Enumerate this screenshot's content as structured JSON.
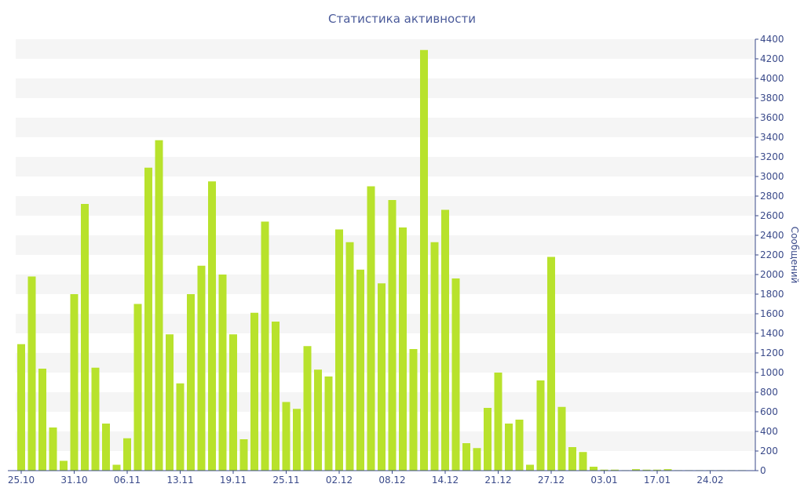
{
  "chart_data": {
    "type": "bar",
    "title": "Статистика активности",
    "xlabel": "",
    "ylabel": "Сообщений",
    "ylim": [
      0,
      4400
    ],
    "y_ticks": [
      0,
      200,
      400,
      600,
      800,
      1000,
      1200,
      1400,
      1600,
      1800,
      2000,
      2200,
      2400,
      2600,
      2800,
      3000,
      3200,
      3400,
      3600,
      3800,
      4000,
      4200,
      4400
    ],
    "x_tick_labels": [
      "25.10",
      "31.10",
      "06.11",
      "13.11",
      "19.11",
      "25.11",
      "02.12",
      "08.12",
      "14.12",
      "21.12",
      "27.12",
      "03.01",
      "17.01",
      "24.02"
    ],
    "x_tick_indices": [
      0,
      5,
      10,
      15,
      20,
      25,
      30,
      35,
      40,
      45,
      50,
      55,
      60,
      65
    ],
    "values": [
      1290,
      1980,
      1040,
      440,
      100,
      1800,
      2720,
      1050,
      480,
      60,
      330,
      1700,
      3090,
      3370,
      1390,
      890,
      1800,
      2090,
      2950,
      2000,
      1390,
      320,
      1610,
      2540,
      1520,
      700,
      630,
      1270,
      1030,
      960,
      2460,
      2330,
      2050,
      2900,
      1910,
      2760,
      2480,
      1240,
      4290,
      2330,
      2660,
      1960,
      280,
      230,
      640,
      1000,
      480,
      520,
      60,
      920,
      2180,
      650,
      240,
      190,
      40,
      10,
      10,
      5,
      15,
      10,
      10,
      15,
      5,
      5,
      5,
      5,
      5,
      5,
      5
    ],
    "bar_color": "#b8e22c",
    "grid": "horizontal-bands",
    "band_color": "#f5f5f5",
    "axis_color": "#3a4a8a"
  }
}
